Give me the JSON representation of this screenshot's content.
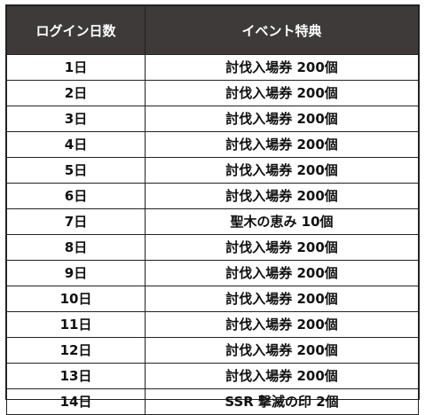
{
  "table": {
    "headers": [
      "ログイン日数",
      "イベント特典"
    ],
    "rows": [
      {
        "day": "1日",
        "reward": "討伐入場券 200個"
      },
      {
        "day": "2日",
        "reward": "討伐入場券 200個"
      },
      {
        "day": "3日",
        "reward": "討伐入場券 200個"
      },
      {
        "day": "4日",
        "reward": "討伐入場券 200個"
      },
      {
        "day": "5日",
        "reward": "討伐入場券 200個"
      },
      {
        "day": "6日",
        "reward": "討伐入場券 200個"
      },
      {
        "day": "7日",
        "reward": "聖木の恵み 10個"
      },
      {
        "day": "8日",
        "reward": "討伐入場券 200個"
      },
      {
        "day": "9日",
        "reward": "討伐入場券 200個"
      },
      {
        "day": "10日",
        "reward": "討伐入場券 200個"
      },
      {
        "day": "11日",
        "reward": "討伐入場券 200個"
      },
      {
        "day": "12日",
        "reward": "討伐入場券 200個"
      },
      {
        "day": "13日",
        "reward": "討伐入場券 200個"
      },
      {
        "day": "14日",
        "reward": "SSR 撃滅の印 2個"
      }
    ]
  },
  "colors": {
    "header_bg": "#3d3a39",
    "header_text": "#ffffff",
    "border": "#222222"
  }
}
